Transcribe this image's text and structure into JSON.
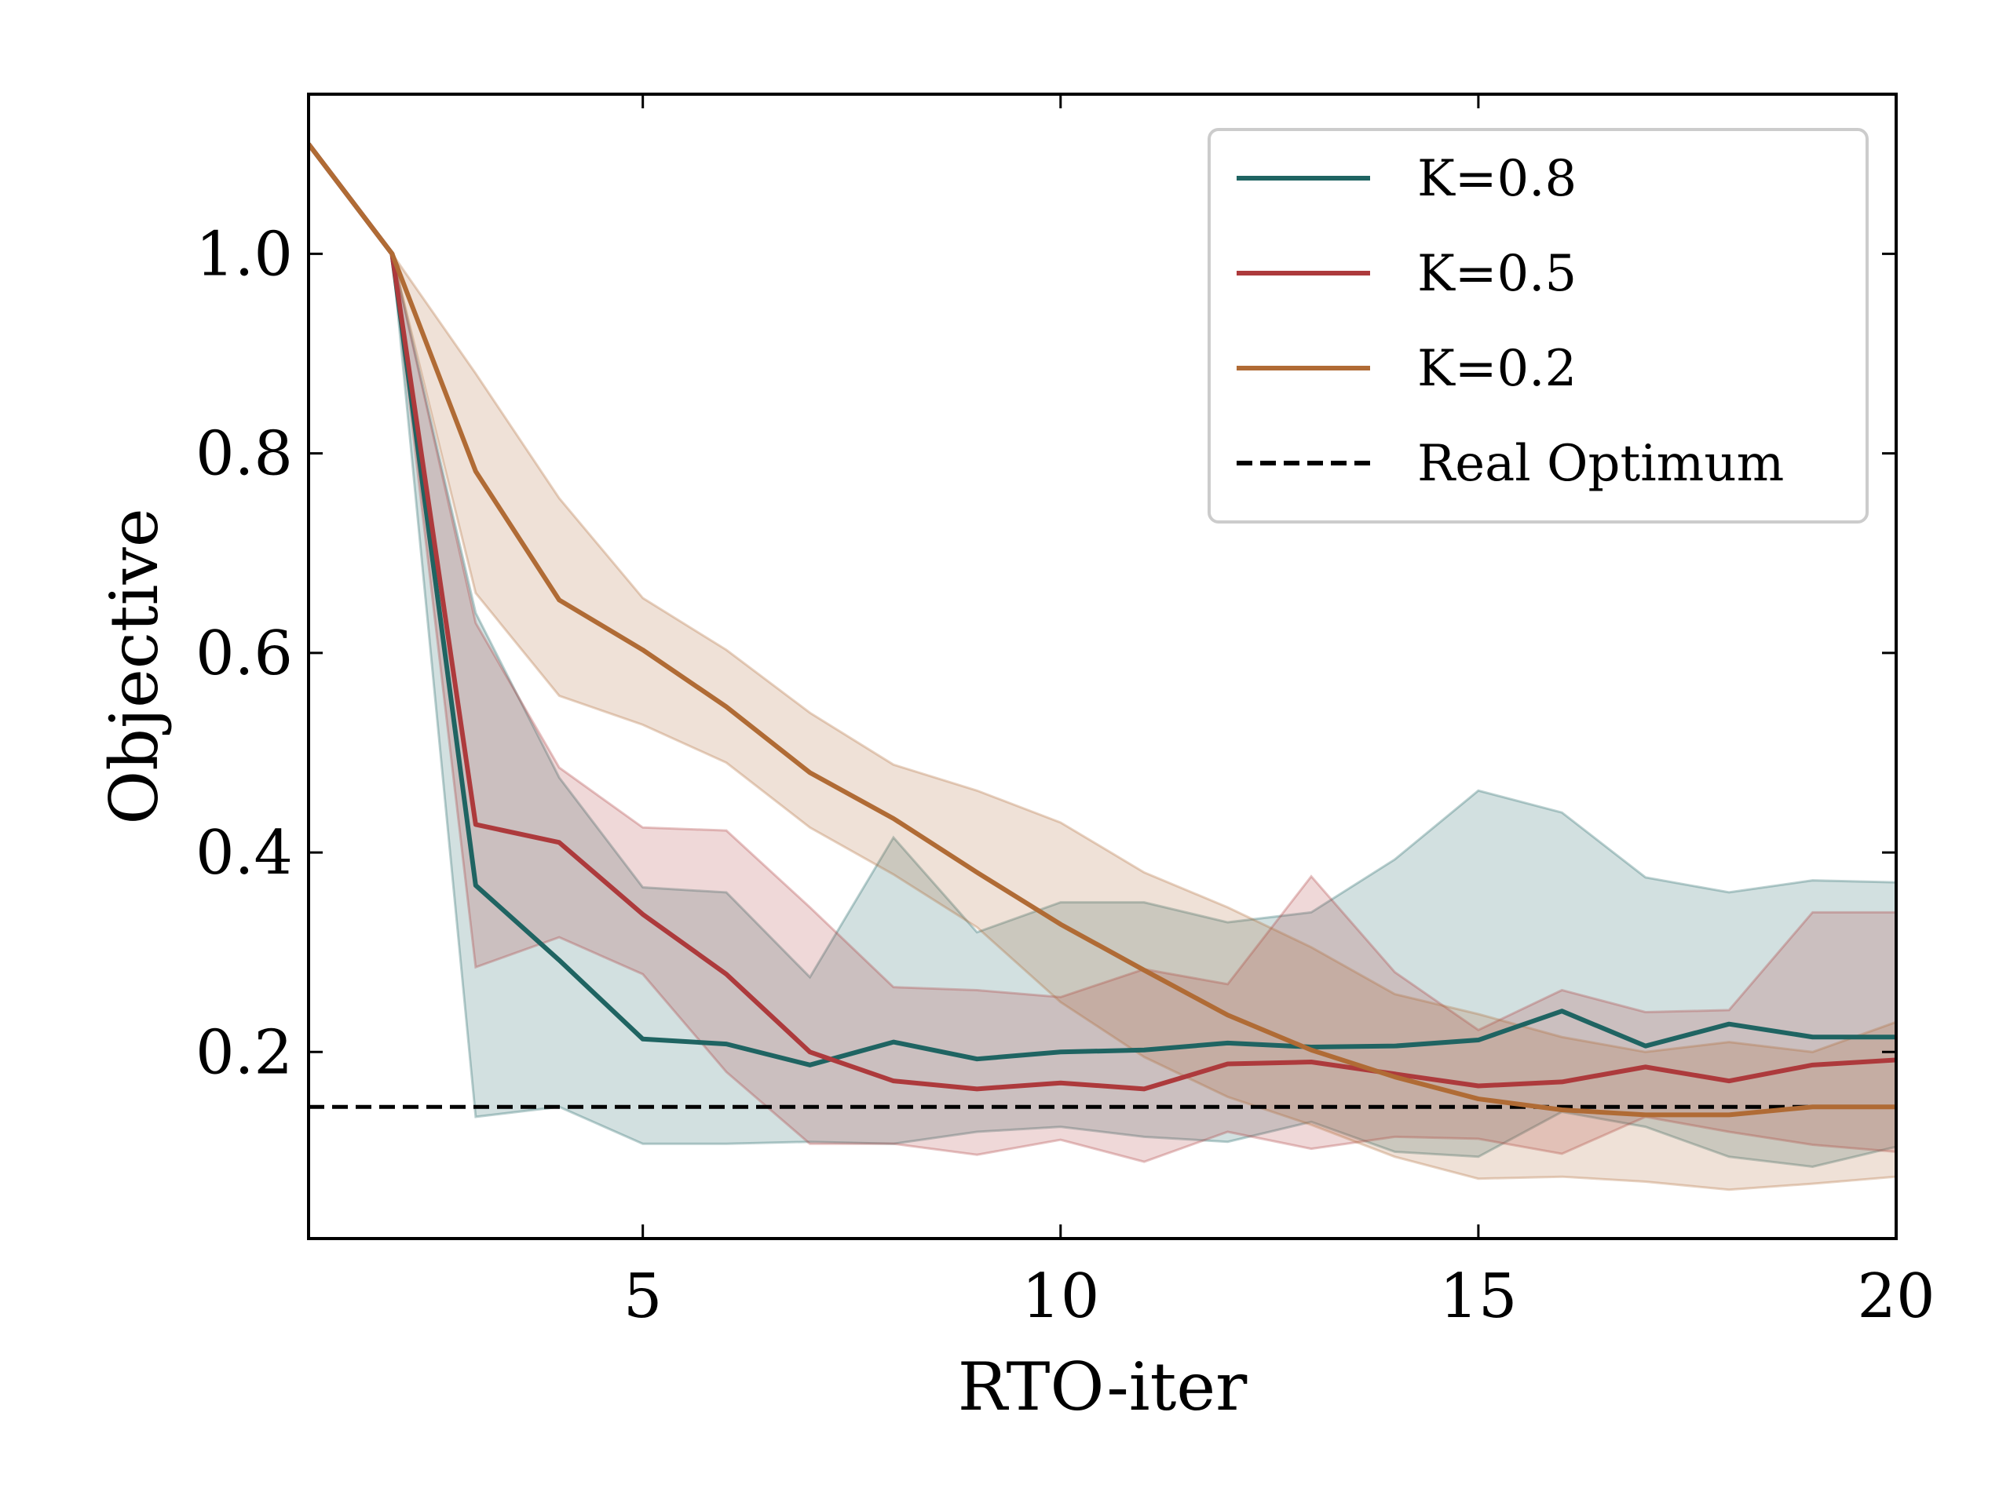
{
  "chart_data": {
    "type": "line",
    "xlabel": "RTO-iter",
    "ylabel": "Objective",
    "xlim": [
      1,
      20
    ],
    "ylim": [
      0.013,
      1.16
    ],
    "xticks": [
      5,
      10,
      15,
      20
    ],
    "yticks": [
      0.2,
      0.4,
      0.6,
      0.8,
      1.0
    ],
    "xtick_labels": [
      "5",
      "10",
      "15",
      "20"
    ],
    "ytick_labels": [
      "0.2",
      "0.4",
      "0.6",
      "0.8",
      "1.0"
    ],
    "grid": false,
    "legend_position": "top-right",
    "x": [
      1,
      2,
      3,
      4,
      5,
      6,
      7,
      8,
      9,
      10,
      11,
      12,
      13,
      14,
      15,
      16,
      17,
      18,
      19,
      20
    ],
    "reference_line": {
      "name": "Real Optimum",
      "y": 0.145,
      "color": "#000000",
      "style": "dashed"
    },
    "series": [
      {
        "name": "K=0.8",
        "color": "#1f6462",
        "values": [
          1.11,
          1.0,
          0.367,
          0.292,
          0.213,
          0.208,
          0.187,
          0.21,
          0.193,
          0.2,
          0.202,
          0.209,
          0.205,
          0.206,
          0.212,
          0.241,
          0.206,
          0.228,
          0.215,
          0.215
        ],
        "lower": [
          1.11,
          1.0,
          0.135,
          0.145,
          0.108,
          0.108,
          0.11,
          0.108,
          0.12,
          0.125,
          0.115,
          0.11,
          0.13,
          0.1,
          0.095,
          0.14,
          0.125,
          0.095,
          0.085,
          0.105
        ],
        "upper": [
          1.11,
          1.0,
          0.64,
          0.475,
          0.365,
          0.36,
          0.275,
          0.415,
          0.32,
          0.35,
          0.35,
          0.33,
          0.34,
          0.393,
          0.462,
          0.44,
          0.375,
          0.36,
          0.372,
          0.37
        ]
      },
      {
        "name": "K=0.5",
        "color": "#ad3a3c",
        "values": [
          1.11,
          1.0,
          0.428,
          0.41,
          0.338,
          0.278,
          0.2,
          0.171,
          0.163,
          0.169,
          0.163,
          0.188,
          0.19,
          0.178,
          0.166,
          0.17,
          0.185,
          0.171,
          0.187,
          0.192
        ],
        "lower": [
          1.11,
          1.0,
          0.285,
          0.315,
          0.278,
          0.18,
          0.108,
          0.108,
          0.097,
          0.112,
          0.09,
          0.12,
          0.103,
          0.115,
          0.113,
          0.098,
          0.135,
          0.12,
          0.107,
          0.1
        ],
        "upper": [
          1.11,
          1.0,
          0.63,
          0.485,
          0.425,
          0.422,
          0.345,
          0.265,
          0.262,
          0.255,
          0.283,
          0.268,
          0.376,
          0.28,
          0.222,
          0.262,
          0.24,
          0.242,
          0.34,
          0.34
        ]
      },
      {
        "name": "K=0.2",
        "color": "#b06b35",
        "values": [
          1.11,
          1.0,
          0.782,
          0.653,
          0.603,
          0.546,
          0.48,
          0.434,
          0.38,
          0.328,
          0.282,
          0.237,
          0.202,
          0.175,
          0.153,
          0.142,
          0.137,
          0.137,
          0.145,
          0.145
        ],
        "lower": [
          1.11,
          1.0,
          0.66,
          0.557,
          0.528,
          0.49,
          0.425,
          0.378,
          0.325,
          0.25,
          0.195,
          0.155,
          0.127,
          0.095,
          0.073,
          0.075,
          0.07,
          0.062,
          0.068,
          0.075
        ],
        "upper": [
          1.11,
          1.0,
          0.88,
          0.755,
          0.655,
          0.603,
          0.54,
          0.488,
          0.462,
          0.43,
          0.38,
          0.345,
          0.305,
          0.258,
          0.238,
          0.215,
          0.2,
          0.21,
          0.2,
          0.23
        ]
      }
    ]
  }
}
